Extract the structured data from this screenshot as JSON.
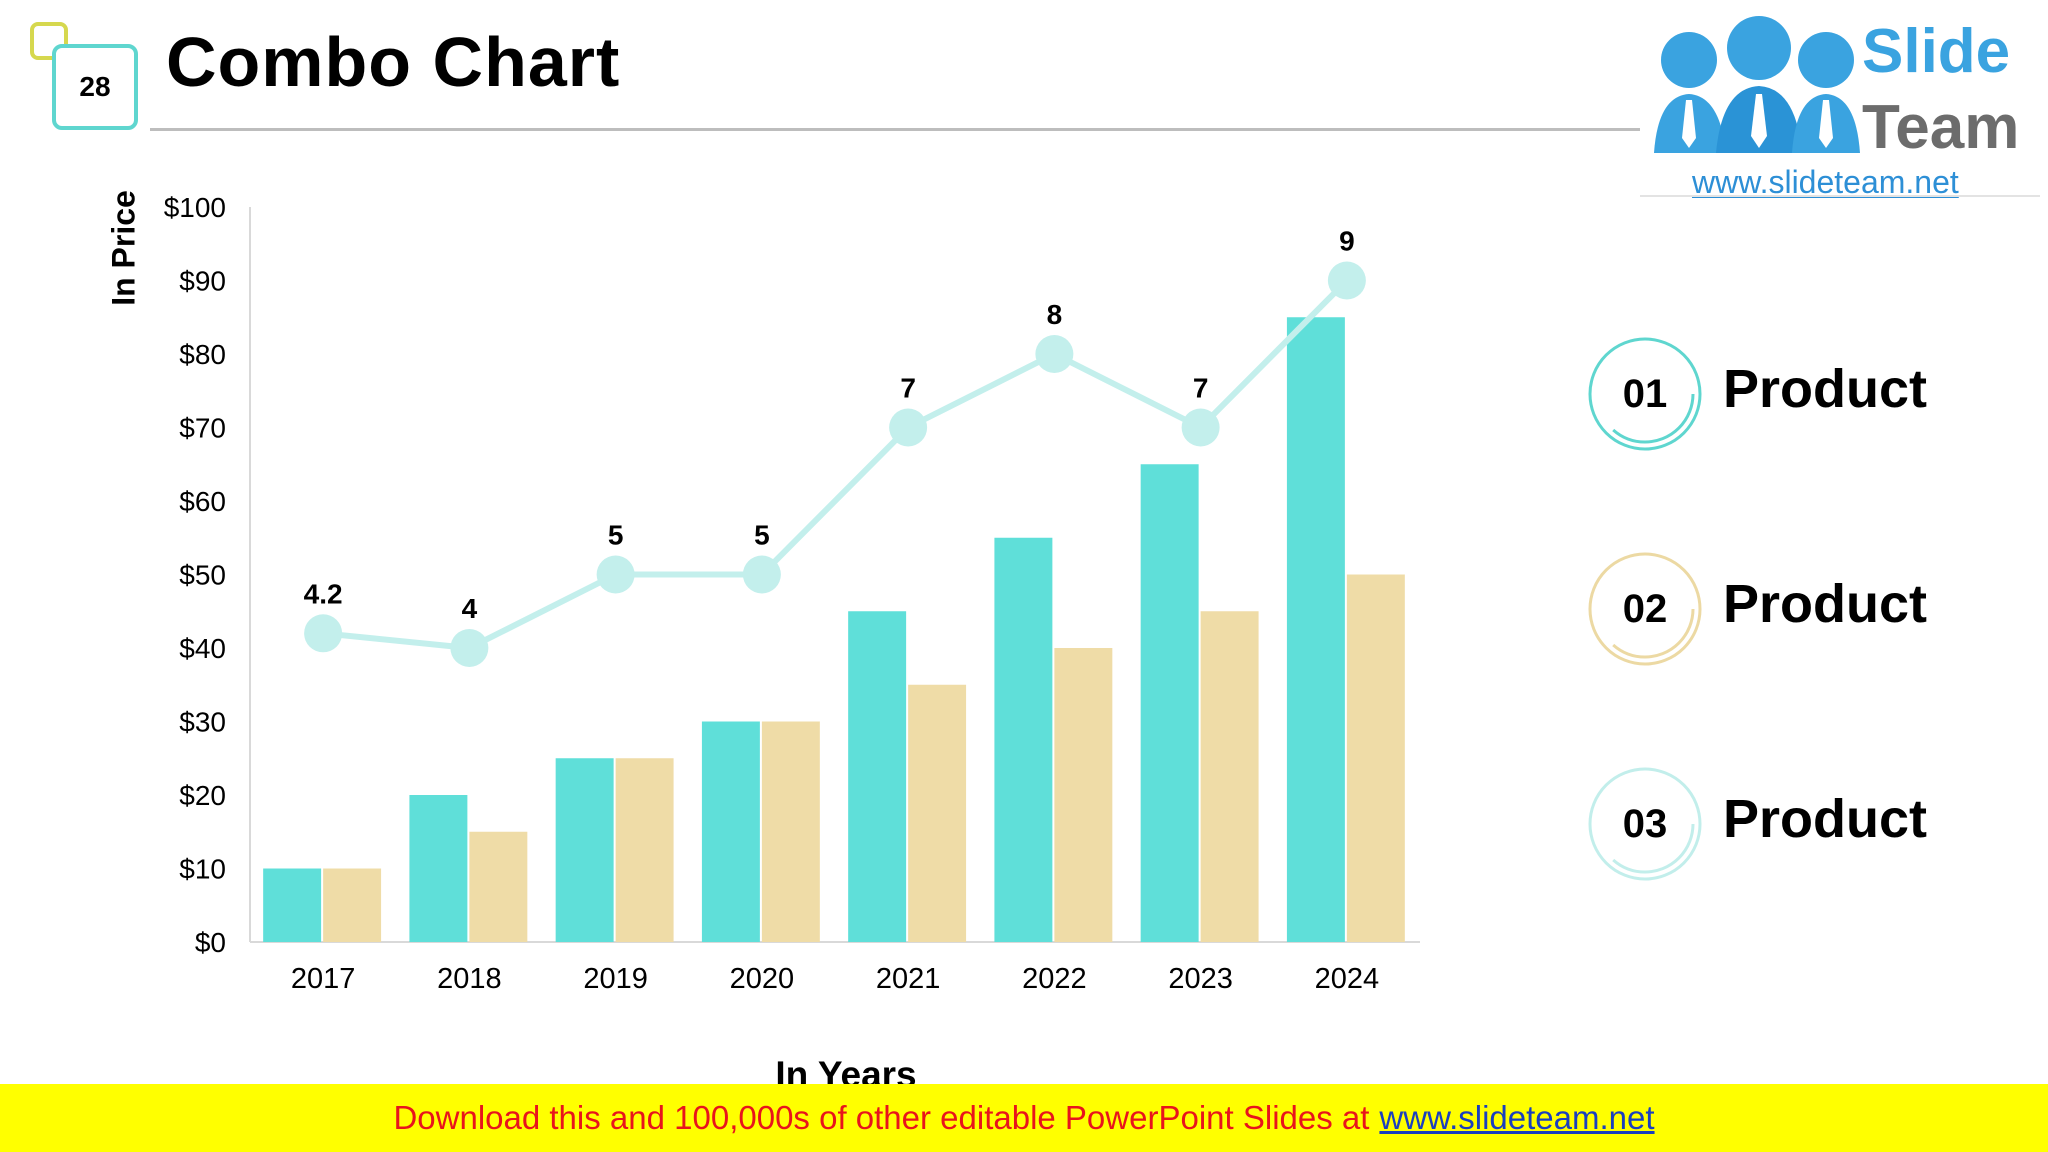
{
  "slide": {
    "number": "28",
    "title": "Combo Chart"
  },
  "logo": {
    "line1": "Slide",
    "line2": "Team",
    "url": "www.slideteam.net"
  },
  "legend": [
    {
      "num": "01",
      "label": "Product",
      "color": "#5fd6cf"
    },
    {
      "num": "02",
      "label": "Product",
      "color": "#ecd9a3"
    },
    {
      "num": "03",
      "label": "Product",
      "color": "#c2eeeb"
    }
  ],
  "footer": {
    "text": "Download this and 100,000s of other editable PowerPoint Slides at",
    "link": "www.slideteam.net"
  },
  "chart_data": {
    "type": "bar",
    "title": "",
    "xlabel": "In Years",
    "ylabel": "In Price",
    "categories": [
      "2017",
      "2018",
      "2019",
      "2020",
      "2021",
      "2022",
      "2023",
      "2024"
    ],
    "ylim": [
      0,
      100
    ],
    "yticks": [
      "$0",
      "$10",
      "$20",
      "$30",
      "$40",
      "$50",
      "$60",
      "$70",
      "$80",
      "$90",
      "$100"
    ],
    "series": [
      {
        "name": "Product 01",
        "type": "bar",
        "color": "#5fdfd9",
        "values": [
          10,
          20,
          25,
          30,
          45,
          55,
          65,
          85
        ]
      },
      {
        "name": "Product 02",
        "type": "bar",
        "color": "#efdca7",
        "values": [
          10,
          15,
          25,
          30,
          35,
          40,
          45,
          50
        ]
      },
      {
        "name": "Product 03",
        "type": "line",
        "color": "#c3efec",
        "values": [
          4.2,
          4,
          5,
          5,
          7,
          8,
          7,
          9
        ],
        "labels": [
          "4.2",
          "4",
          "5",
          "5",
          "7",
          "8",
          "7",
          "9"
        ]
      }
    ]
  }
}
